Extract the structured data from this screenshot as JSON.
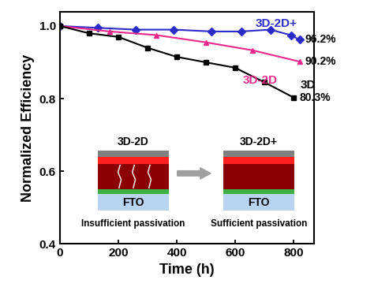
{
  "chart_data": {
    "type": "line",
    "x_label": "Time (h)",
    "y_label": "Normalized Efficiency",
    "xlim": [
      0,
      870
    ],
    "xticks": [
      0,
      200,
      400,
      600,
      800
    ],
    "ylim": [
      0.4,
      1.04
    ],
    "yticks": [
      0.4,
      0.6,
      0.8,
      1.0
    ],
    "grid": false,
    "series": [
      {
        "name": "3D-2D+",
        "color": "#2b2bc8",
        "marker": "diamond",
        "x": [
          0,
          130,
          260,
          390,
          520,
          620,
          720,
          790,
          820
        ],
        "values": [
          1.0,
          0.995,
          0.99,
          0.99,
          0.985,
          0.985,
          0.99,
          0.975,
          0.962
        ],
        "value_labels": [
          null,
          null,
          null,
          null,
          null,
          null,
          null,
          null,
          "96.2%"
        ]
      },
      {
        "name": "3D-2D",
        "color": "#e8288a",
        "marker": "triangle",
        "x": [
          0,
          170,
          330,
          500,
          660,
          820
        ],
        "values": [
          1.0,
          0.985,
          0.975,
          0.955,
          0.933,
          0.902
        ],
        "value_labels": [
          null,
          null,
          null,
          null,
          null,
          "90.2%"
        ]
      },
      {
        "name": "3D",
        "color": "#000000",
        "marker": "square",
        "x": [
          0,
          100,
          200,
          300,
          400,
          500,
          600,
          700,
          800
        ],
        "values": [
          1.0,
          0.98,
          0.97,
          0.94,
          0.915,
          0.9,
          0.885,
          0.845,
          0.803
        ],
        "value_labels": [
          null,
          null,
          null,
          null,
          null,
          null,
          null,
          null,
          "80.3%"
        ]
      }
    ],
    "inset": {
      "left_title": "3D-2D",
      "right_title": "3D-2D+",
      "substrate": "FTO",
      "left_caption": "Insufficient passivation",
      "right_caption": "Sufficient passivation"
    }
  }
}
